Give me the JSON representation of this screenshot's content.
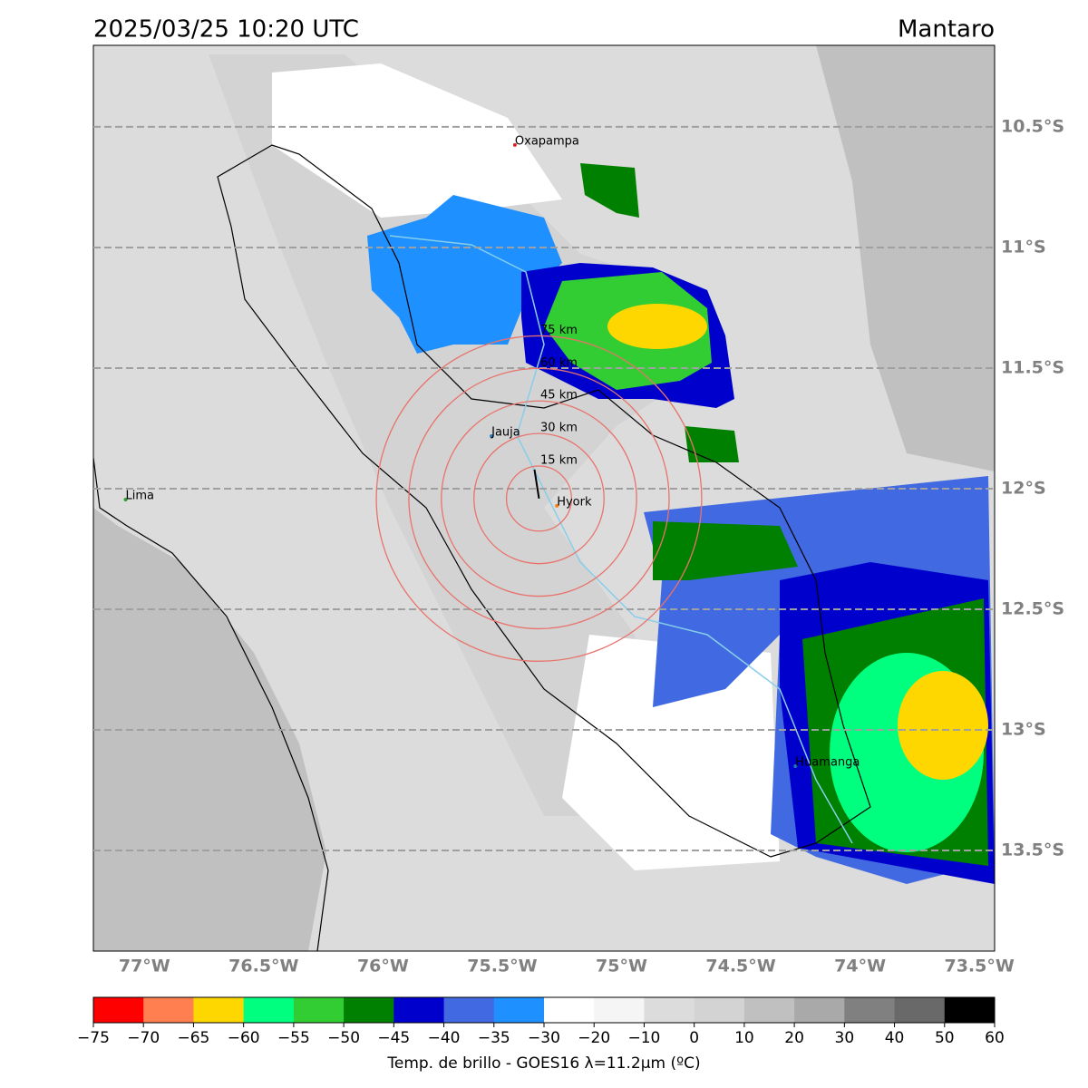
{
  "header": {
    "title": "2025/03/25 10:20 UTC",
    "region": "Mantaro"
  },
  "map": {
    "xlim": [
      -77.214,
      -73.436
    ],
    "ylim": [
      -13.917,
      -10.162
    ],
    "xticks": [
      {
        "value": -77,
        "label": "77°W"
      },
      {
        "value": -76.5,
        "label": "76.5°W"
      },
      {
        "value": -76,
        "label": "76°W"
      },
      {
        "value": -75.5,
        "label": "75.5°W"
      },
      {
        "value": -75,
        "label": "75°W"
      },
      {
        "value": -74.5,
        "label": "74.5°W"
      },
      {
        "value": -74,
        "label": "74°W"
      },
      {
        "value": -73.5,
        "label": "73.5°W"
      }
    ],
    "yticks": [
      {
        "value": -10.5,
        "label": "10.5°S"
      },
      {
        "value": -11,
        "label": "11°S"
      },
      {
        "value": -11.5,
        "label": "11.5°S"
      },
      {
        "value": -12,
        "label": "12°S"
      },
      {
        "value": -12.5,
        "label": "12.5°S"
      },
      {
        "value": -13,
        "label": "13°S"
      },
      {
        "value": -13.5,
        "label": "13.5°S"
      }
    ],
    "grid": true,
    "cities": [
      {
        "name": "Oxapampa",
        "lon": -75.447,
        "lat": -10.575,
        "color": "#d62728"
      },
      {
        "name": "Jauja",
        "lon": -75.545,
        "lat": -11.782,
        "color": "#1f77b4"
      },
      {
        "name": "Lima",
        "lon": -77.079,
        "lat": -12.045,
        "color": "#2ca02c"
      },
      {
        "name": "Hyork",
        "lon": -75.271,
        "lat": -12.071,
        "color": "#ff7f0e"
      },
      {
        "name": "Huamanga",
        "lon": -74.271,
        "lat": -13.15,
        "color": "#1f77b4"
      }
    ],
    "rings": {
      "center_lon": -75.346,
      "center_lat": -12.041,
      "color": "#e8736c",
      "radii": [
        {
          "value": 15,
          "label": "15 km"
        },
        {
          "value": 30,
          "label": "30 km"
        },
        {
          "value": 45,
          "label": "45 km"
        },
        {
          "value": 60,
          "label": "60 km"
        },
        {
          "value": 75,
          "label": "75 km"
        }
      ]
    }
  },
  "colorbar": {
    "label": "Temp. de brillo - GOES16 λ=11.2μm (ºC)",
    "bounds": [
      {
        "value": -75,
        "label": "−75"
      },
      {
        "value": -70,
        "label": "−70"
      },
      {
        "value": -65,
        "label": "−65"
      },
      {
        "value": -60,
        "label": "−60"
      },
      {
        "value": -55,
        "label": "−55"
      },
      {
        "value": -50,
        "label": "−50"
      },
      {
        "value": -45,
        "label": "−45"
      },
      {
        "value": -40,
        "label": "−40"
      },
      {
        "value": -35,
        "label": "−35"
      },
      {
        "value": -30,
        "label": "−30"
      },
      {
        "value": -20,
        "label": "−20"
      },
      {
        "value": -10,
        "label": "−10"
      },
      0,
      10,
      20,
      30,
      40,
      50,
      60
    ],
    "colors": [
      "#ff0000",
      "#ff7f50",
      "#ffd700",
      "#00ff7f",
      "#32cd32",
      "#008000",
      "#0000cd",
      "#4169e1",
      "#1e90ff",
      "#ffffff",
      "#f5f5f5",
      "#dcdcdc",
      "#d3d3d3",
      "#c0c0c0",
      "#a9a9a9",
      "#808080",
      "#696969",
      "#000000"
    ]
  }
}
